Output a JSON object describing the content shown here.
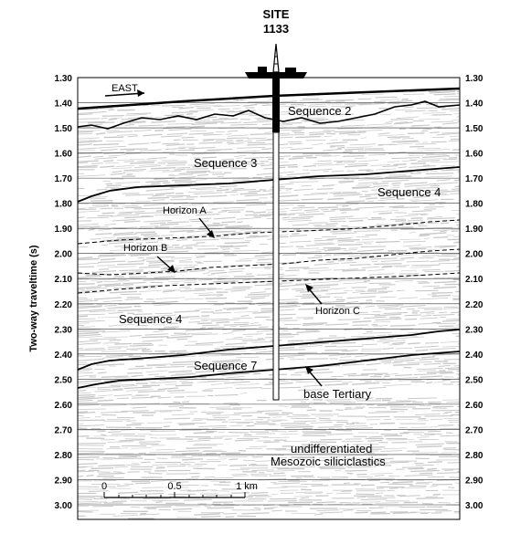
{
  "site": {
    "label_line1": "SITE",
    "label_line2": "1133"
  },
  "y_axis": {
    "label": "Two-way traveltime (s)",
    "range": [
      1.3,
      3.0
    ],
    "ticks": [
      "1.30",
      "1.40",
      "1.50",
      "1.60",
      "1.70",
      "1.80",
      "1.90",
      "2.00",
      "2.10",
      "2.20",
      "2.30",
      "2.40",
      "2.50",
      "2.60",
      "2.70",
      "2.80",
      "2.90",
      "3.00"
    ]
  },
  "direction_label": "EAST",
  "scale_bar": {
    "labels": [
      "0",
      "0.5",
      "1 km"
    ]
  },
  "units": [
    {
      "id": "seq2",
      "label": "Sequence 2"
    },
    {
      "id": "seq3",
      "label": "Sequence 3"
    },
    {
      "id": "seq4-right",
      "label": "Sequence 4"
    },
    {
      "id": "seq4-left",
      "label": "Sequence 4"
    },
    {
      "id": "seq7",
      "label": "Sequence 7"
    },
    {
      "id": "meso1",
      "label": "undifferentiated"
    },
    {
      "id": "meso2",
      "label": "Mesozoic siliciclastics"
    }
  ],
  "horizons": [
    {
      "id": "hA",
      "label": "Horizon A"
    },
    {
      "id": "hB",
      "label": "Horizon B"
    },
    {
      "id": "hC",
      "label": "Horizon C"
    },
    {
      "id": "base",
      "label": "base Tertiary"
    }
  ],
  "colors": {
    "noise": "#c8c8c8",
    "line": "#000000",
    "well": "#ffffff"
  }
}
